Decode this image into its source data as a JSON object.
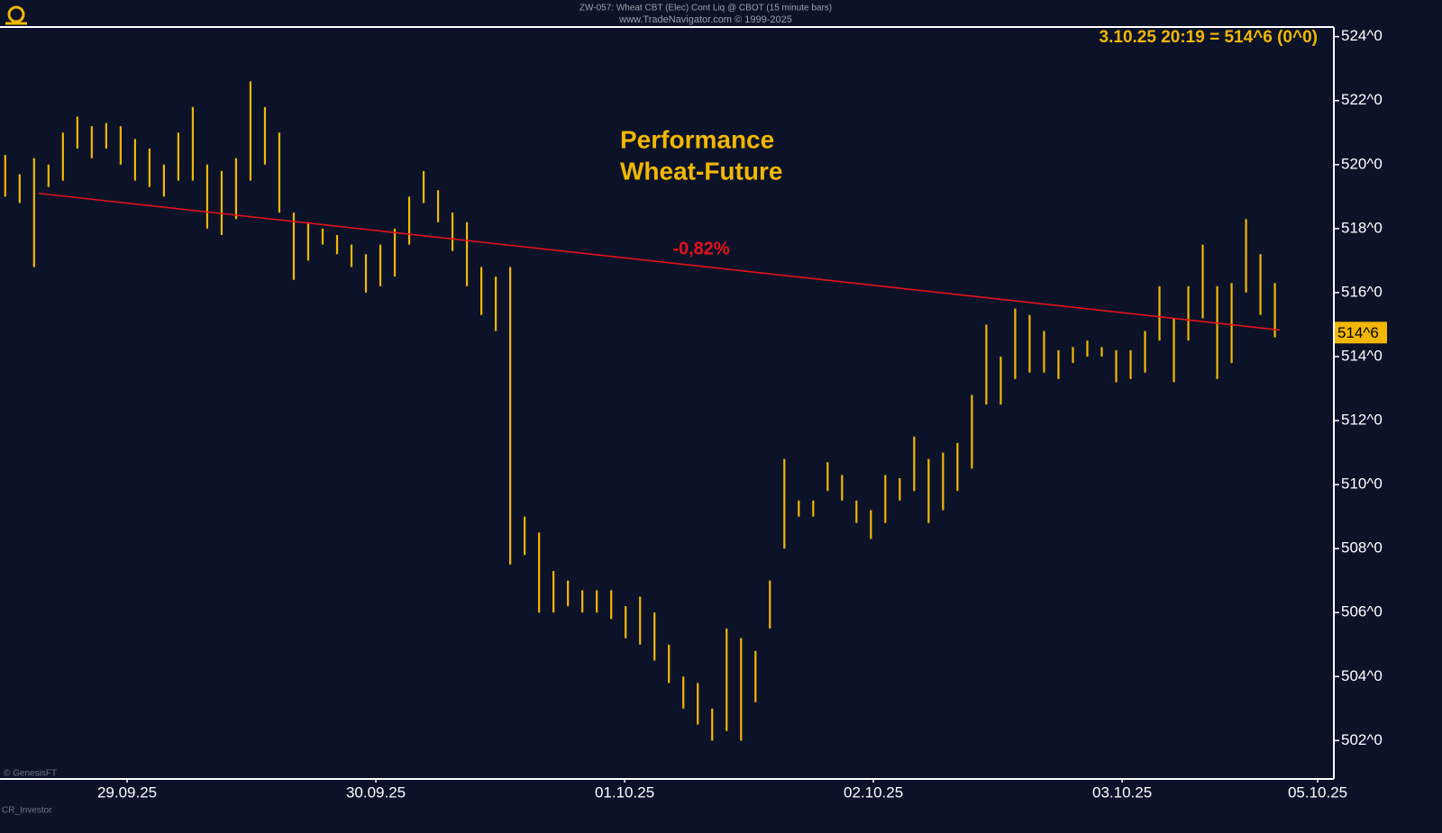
{
  "chart_data": {
    "type": "hlbar",
    "title": "ZW-057: Wheat CBT (Elec) Cont Liq @ CBOT (15 minute bars)",
    "subtitle": "www.TradeNavigator.com © 1999-2025",
    "readout": "3.10.25 20:19 = 514^6 (0^0)",
    "annotation_lines": [
      "Performance",
      "Wheat-Future"
    ],
    "credits": [
      "© GenesisFT",
      "CR_Investor"
    ],
    "color": "#f2b705",
    "xlim": [
      -0.511,
      4.851
    ],
    "xticks": [
      {
        "value": 0,
        "label": "29.09.25"
      },
      {
        "value": 1,
        "label": "30.09.25"
      },
      {
        "value": 2,
        "label": "01.10.25"
      },
      {
        "value": 3,
        "label": "02.10.25"
      },
      {
        "value": 4,
        "label": "03.10.25"
      },
      {
        "value": 4.786,
        "label": "05.10.25"
      }
    ],
    "ylim": [
      500.8,
      524.3
    ],
    "yticks": [
      {
        "value": 502,
        "label": "502^0"
      },
      {
        "value": 504,
        "label": "504^0"
      },
      {
        "value": 506,
        "label": "506^0"
      },
      {
        "value": 508,
        "label": "508^0"
      },
      {
        "value": 510,
        "label": "510^0"
      },
      {
        "value": 512,
        "label": "512^0"
      },
      {
        "value": 514,
        "label": "514^0"
      },
      {
        "value": 516,
        "label": "516^0"
      },
      {
        "value": 518,
        "label": "518^0"
      },
      {
        "value": 520,
        "label": "520^0"
      },
      {
        "value": 522,
        "label": "522^0"
      },
      {
        "value": 524,
        "label": "524^0"
      }
    ],
    "x": [
      -0.49,
      -0.432,
      -0.374,
      -0.316,
      -0.258,
      -0.2,
      -0.142,
      -0.084,
      -0.026,
      0.032,
      0.09,
      0.148,
      0.206,
      0.264,
      0.322,
      0.38,
      0.438,
      0.496,
      0.554,
      0.612,
      0.67,
      0.728,
      0.786,
      0.844,
      0.902,
      0.96,
      1.018,
      1.076,
      1.134,
      1.192,
      1.25,
      1.308,
      1.366,
      1.424,
      1.482,
      1.54,
      1.598,
      1.656,
      1.714,
      1.772,
      1.83,
      1.888,
      1.946,
      2.004,
      2.062,
      2.12,
      2.178,
      2.236,
      2.294,
      2.352,
      2.41,
      2.468,
      2.526,
      2.584,
      2.642,
      2.7,
      2.758,
      2.816,
      2.874,
      2.932,
      2.99,
      3.048,
      3.106,
      3.164,
      3.222,
      3.28,
      3.338,
      3.396,
      3.454,
      3.512,
      3.57,
      3.628,
      3.686,
      3.744,
      3.802,
      3.86,
      3.918,
      3.976,
      4.034,
      4.092,
      4.15,
      4.208,
      4.266,
      4.324,
      4.382,
      4.44,
      4.498,
      4.556,
      4.614
    ],
    "high": [
      520.3,
      519.7,
      520.2,
      520.0,
      521.0,
      521.5,
      521.2,
      521.3,
      521.2,
      520.8,
      520.5,
      520.0,
      521.0,
      521.8,
      520.0,
      519.8,
      520.2,
      522.6,
      521.8,
      521.0,
      518.5,
      518.2,
      518.0,
      517.8,
      517.5,
      517.2,
      517.5,
      518.0,
      519.0,
      519.8,
      519.2,
      518.5,
      518.2,
      516.8,
      516.5,
      516.8,
      509.0,
      508.5,
      507.3,
      507.0,
      506.7,
      506.7,
      506.7,
      506.2,
      506.5,
      506.0,
      505.0,
      504.0,
      503.8,
      503.0,
      505.5,
      505.2,
      504.8,
      507.0,
      510.8,
      509.5,
      509.5,
      510.7,
      510.3,
      509.5,
      509.2,
      510.3,
      510.2,
      511.5,
      510.8,
      511.0,
      511.3,
      512.8,
      515.0,
      514.0,
      515.5,
      515.3,
      514.8,
      514.2,
      514.3,
      514.5,
      514.3,
      514.2,
      514.2,
      514.8,
      516.2,
      515.2,
      516.2,
      517.5,
      516.2,
      516.3,
      518.3,
      517.2,
      516.3
    ],
    "low": [
      519.0,
      518.8,
      516.8,
      519.3,
      519.5,
      520.5,
      520.2,
      520.5,
      520.0,
      519.5,
      519.3,
      519.0,
      519.5,
      519.5,
      518.0,
      517.8,
      518.3,
      519.5,
      520.0,
      518.5,
      516.4,
      517.0,
      517.5,
      517.2,
      516.8,
      516.0,
      516.2,
      516.5,
      517.5,
      518.8,
      518.2,
      517.3,
      516.2,
      515.3,
      514.8,
      507.5,
      507.8,
      506.0,
      506.0,
      506.2,
      506.0,
      506.0,
      505.8,
      505.2,
      505.0,
      504.5,
      503.8,
      503.0,
      502.5,
      502.0,
      502.3,
      502.0,
      503.2,
      505.5,
      508.0,
      509.0,
      509.0,
      509.8,
      509.5,
      508.8,
      508.3,
      508.8,
      509.5,
      509.8,
      508.8,
      509.2,
      509.8,
      510.5,
      512.5,
      512.5,
      513.3,
      513.5,
      513.5,
      513.3,
      513.8,
      514.0,
      514.0,
      513.2,
      513.3,
      513.5,
      514.5,
      513.2,
      514.5,
      515.2,
      513.3,
      513.8,
      516.0,
      515.3,
      514.6
    ],
    "trendline": {
      "x": [
        -0.355,
        4.634
      ],
      "values": [
        519.1,
        514.83
      ],
      "color": "#e8111b",
      "label": "-0,82%"
    },
    "last_price": {
      "value": 514.75,
      "label": "514^6"
    }
  }
}
